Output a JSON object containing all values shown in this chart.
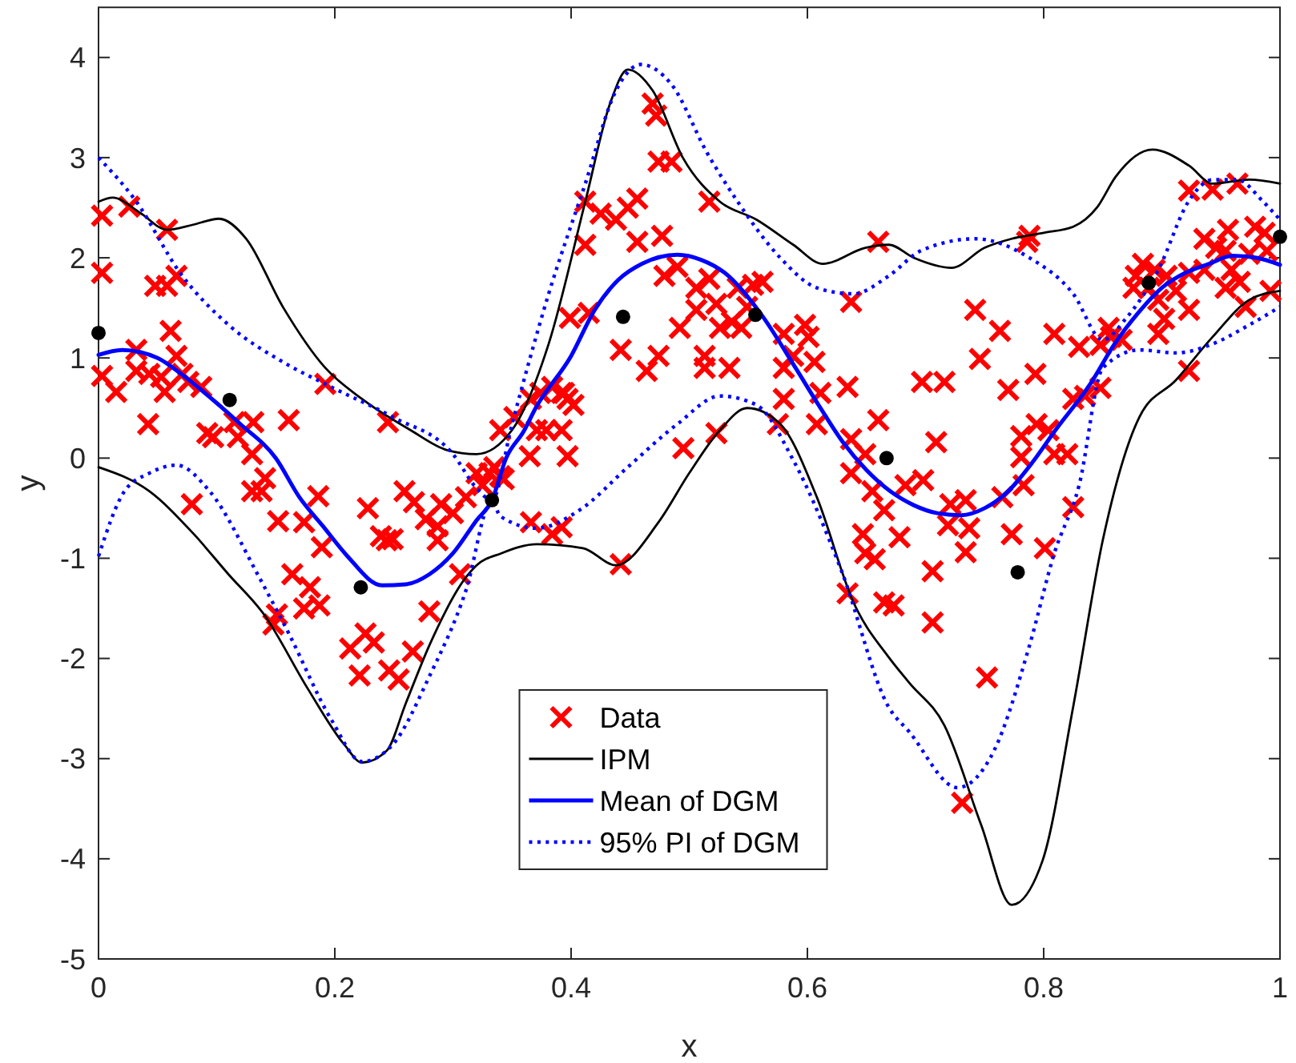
{
  "chart_data": {
    "type": "scatter",
    "xlabel": "x",
    "ylabel": "y",
    "xlim": [
      0,
      1
    ],
    "ylim": [
      -5,
      4.5
    ],
    "xticks": [
      0,
      0.2,
      0.4,
      0.6,
      0.8,
      1
    ],
    "yticks": [
      -5,
      -4,
      -3,
      -2,
      -1,
      0,
      1,
      2,
      3,
      4
    ],
    "grid": false,
    "legend": "bottom",
    "series": [
      {
        "name": "Data",
        "marker": "cross",
        "color": "#ff0000",
        "x": [
          0.003,
          0.026,
          0.058,
          0.003,
          0.048,
          0.058,
          0.066,
          0.061,
          0.032,
          0.066,
          0.003,
          0.015,
          0.032,
          0.043,
          0.053,
          0.056,
          0.071,
          0.076,
          0.087,
          0.042,
          0.092,
          0.097,
          0.115,
          0.118,
          0.131,
          0.161,
          0.13,
          0.141,
          0.13,
          0.138,
          0.152,
          0.174,
          0.186,
          0.189,
          0.079,
          0.164,
          0.179,
          0.187,
          0.174,
          0.151,
          0.148,
          0.192,
          0.245,
          0.228,
          0.259,
          0.267,
          0.29,
          0.3,
          0.311,
          0.277,
          0.287,
          0.287,
          0.239,
          0.249,
          0.244,
          0.306,
          0.28,
          0.213,
          0.226,
          0.233,
          0.221,
          0.246,
          0.254,
          0.266,
          0.331,
          0.32,
          0.335,
          0.34,
          0.343,
          0.325,
          0.34,
          0.352,
          0.366,
          0.374,
          0.384,
          0.394,
          0.397,
          0.402,
          0.371,
          0.379,
          0.392,
          0.365,
          0.397,
          0.392,
          0.366,
          0.384,
          0.392,
          0.442,
          0.495,
          0.523,
          0.412,
          0.425,
          0.438,
          0.448,
          0.456,
          0.412,
          0.456,
          0.477,
          0.469,
          0.472,
          0.474,
          0.485,
          0.517,
          0.399,
          0.415,
          0.442,
          0.464,
          0.474,
          0.479,
          0.49,
          0.492,
          0.506,
          0.506,
          0.513,
          0.513,
          0.517,
          0.523,
          0.526,
          0.534,
          0.536,
          0.541,
          0.544,
          0.549,
          0.554,
          0.562,
          0.58,
          0.58,
          0.58,
          0.575,
          0.588,
          0.598,
          0.601,
          0.606,
          0.611,
          0.608,
          0.634,
          0.637,
          0.66,
          0.66,
          0.637,
          0.649,
          0.637,
          0.655,
          0.647,
          0.649,
          0.657,
          0.634,
          0.665,
          0.709,
          0.683,
          0.698,
          0.665,
          0.678,
          0.706,
          0.673,
          0.706,
          0.752,
          0.731,
          0.742,
          0.763,
          0.746,
          0.697,
          0.716,
          0.77,
          0.793,
          0.809,
          0.83,
          0.848,
          0.857,
          0.866,
          0.825,
          0.835,
          0.848,
          0.781,
          0.794,
          0.804,
          0.809,
          0.82,
          0.781,
          0.783,
          0.765,
          0.721,
          0.734,
          0.719,
          0.737,
          0.734,
          0.773,
          0.801,
          0.825,
          0.788,
          0.786,
          0.923,
          0.943,
          0.964,
          0.884,
          0.894,
          0.904,
          0.889,
          0.897,
          0.897,
          0.902,
          0.912,
          0.923,
          0.923,
          0.936,
          0.936,
          0.946,
          0.956,
          0.954,
          0.959,
          0.954,
          0.966,
          0.974,
          0.979,
          0.987,
          0.989,
          0.992,
          0.971,
          0.923,
          0.876,
          0.878,
          0.855
        ],
        "values": [
          2.42,
          2.51,
          2.28,
          1.85,
          1.72,
          1.72,
          1.82,
          1.27,
          1.08,
          1.02,
          0.82,
          0.66,
          0.87,
          0.84,
          0.81,
          0.66,
          0.84,
          0.76,
          0.71,
          0.34,
          0.25,
          0.21,
          0.36,
          0.21,
          0.36,
          0.38,
          0.04,
          -0.2,
          -0.33,
          -0.33,
          -0.63,
          -0.64,
          -0.38,
          -0.89,
          -0.46,
          -1.16,
          -1.29,
          -1.47,
          -1.5,
          -1.56,
          -1.66,
          0.74,
          0.36,
          -0.5,
          -0.33,
          -0.44,
          -0.46,
          -0.55,
          -0.39,
          -0.61,
          -0.68,
          -0.82,
          -0.78,
          -0.81,
          -0.82,
          -1.16,
          -1.53,
          -1.9,
          -1.75,
          -1.84,
          -2.17,
          -2.12,
          -2.21,
          -1.93,
          -0.15,
          -0.15,
          -0.09,
          -0.18,
          -0.21,
          -0.27,
          0.28,
          0.41,
          0.59,
          0.65,
          0.71,
          0.65,
          0.59,
          0.53,
          0.28,
          0.28,
          0.28,
          0.02,
          0.02,
          0.65,
          -0.64,
          -0.76,
          -0.69,
          -1.06,
          0.1,
          0.25,
          2.56,
          2.44,
          2.38,
          2.5,
          2.59,
          2.13,
          2.16,
          2.22,
          3.54,
          3.42,
          2.96,
          2.96,
          2.56,
          1.4,
          1.45,
          1.08,
          0.87,
          1.02,
          1.82,
          1.91,
          1.3,
          1.48,
          1.7,
          1.02,
          0.9,
          1.79,
          1.54,
          1.3,
          0.9,
          1.36,
          1.7,
          1.3,
          1.51,
          1.73,
          1.76,
          1.24,
          0.9,
          0.59,
          0.34,
          1.02,
          1.33,
          1.21,
          0.96,
          0.65,
          0.34,
          0.71,
          1.56,
          2.16,
          0.38,
          0.19,
          0.04,
          -0.15,
          -0.33,
          -0.76,
          -0.95,
          -1.01,
          -1.35,
          -1.44,
          0.16,
          -0.27,
          -0.22,
          -0.52,
          -0.79,
          -1.13,
          -1.47,
          -1.64,
          -2.19,
          -3.44,
          1.48,
          1.27,
          0.99,
          0.76,
          0.76,
          0.68,
          0.84,
          1.24,
          1.11,
          1.13,
          1.21,
          1.18,
          0.59,
          0.62,
          0.7,
          0.22,
          0.34,
          0.28,
          0.04,
          0.04,
          0.01,
          -0.27,
          -0.39,
          -0.46,
          -0.42,
          -0.67,
          -0.7,
          -0.94,
          -0.76,
          -0.9,
          -0.49,
          2.22,
          2.16,
          2.67,
          2.68,
          2.74,
          1.94,
          1.88,
          1.82,
          1.7,
          1.58,
          1.24,
          1.39,
          1.67,
          1.48,
          1.85,
          2.19,
          1.88,
          2.1,
          2.28,
          2.07,
          1.88,
          1.7,
          1.76,
          2.04,
          2.31,
          2.25,
          2.07,
          1.67,
          1.51,
          0.87,
          1.7,
          1.82,
          1.3
        ]
      },
      {
        "name": "IPM",
        "type": "line",
        "color": "#000000",
        "line_style": "solid",
        "x": [
          0,
          0.012,
          0.035,
          0.058,
          0.08,
          0.102,
          0.125,
          0.156,
          0.192,
          0.223,
          0.264,
          0.295,
          0.32,
          0.35,
          0.381,
          0.412,
          0.433,
          0.448,
          0.469,
          0.495,
          0.526,
          0.557,
          0.588,
          0.613,
          0.649,
          0.669,
          0.69,
          0.722,
          0.75,
          0.773,
          0.8,
          0.825,
          0.845,
          0.861,
          0.892,
          0.923,
          0.943,
          0.974,
          1
        ],
        "values": [
          2.56,
          2.6,
          2.45,
          2.28,
          2.33,
          2.39,
          2.19,
          1.51,
          0.9,
          0.59,
          0.28,
          0.08,
          0.04,
          0.28,
          1.14,
          2.56,
          3.54,
          3.88,
          3.67,
          2.99,
          2.56,
          2.38,
          2.13,
          1.94,
          2.1,
          2.13,
          2.0,
          1.9,
          2.1,
          2.19,
          2.25,
          2.31,
          2.5,
          2.81,
          3.08,
          2.92,
          2.74,
          2.78,
          2.74
        ]
      },
      {
        "type": "line",
        "color": "#000000",
        "line_style": "solid",
        "x": [
          0,
          0.043,
          0.08,
          0.11,
          0.14,
          0.177,
          0.208,
          0.223,
          0.244,
          0.26,
          0.28,
          0.311,
          0.32,
          0.341,
          0.371,
          0.41,
          0.438,
          0.474,
          0.5,
          0.526,
          0.549,
          0.577,
          0.608,
          0.639,
          0.669,
          0.686,
          0.716,
          0.747,
          0.773,
          0.799,
          0.825,
          0.85,
          0.881,
          0.912,
          0.943,
          0.974,
          1
        ],
        "values": [
          -0.09,
          -0.33,
          -0.75,
          -1.16,
          -1.56,
          -2.3,
          -2.86,
          -3.04,
          -2.92,
          -2.45,
          -1.87,
          -1.19,
          -1.07,
          -0.95,
          -0.86,
          -0.9,
          -1.07,
          -0.64,
          -0.15,
          0.28,
          0.5,
          0.34,
          -0.39,
          -1.44,
          -1.99,
          -2.24,
          -2.67,
          -3.66,
          -4.46,
          -4.02,
          -2.48,
          -0.82,
          0.41,
          0.78,
          1.21,
          1.58,
          1.67
        ]
      },
      {
        "name": "Mean of DGM",
        "type": "line",
        "color": "#0000ff",
        "line_style": "solid",
        "x": [
          0,
          0.02,
          0.05,
          0.07,
          0.1,
          0.12,
          0.15,
          0.17,
          0.19,
          0.21,
          0.24,
          0.26,
          0.28,
          0.3,
          0.32,
          0.333,
          0.345,
          0.36,
          0.37,
          0.4,
          0.42,
          0.44,
          0.46,
          0.49,
          0.51,
          0.53,
          0.56,
          0.59,
          0.61,
          0.63,
          0.65,
          0.67,
          0.69,
          0.71,
          0.73,
          0.75,
          0.77,
          0.79,
          0.81,
          0.84,
          0.86,
          0.88,
          0.9,
          0.92,
          0.94,
          0.96,
          0.98,
          1
        ],
        "values": [
          1.03,
          1.08,
          1.0,
          0.84,
          0.55,
          0.34,
          0.0,
          -0.39,
          -0.68,
          -0.97,
          -1.27,
          -1.26,
          -1.16,
          -0.95,
          -0.62,
          -0.42,
          0.0,
          0.27,
          0.5,
          1.02,
          1.48,
          1.78,
          1.94,
          2.03,
          1.98,
          1.85,
          1.45,
          0.9,
          0.52,
          0.16,
          -0.12,
          -0.33,
          -0.47,
          -0.55,
          -0.57,
          -0.5,
          -0.33,
          -0.05,
          0.28,
          0.75,
          1.14,
          1.45,
          1.7,
          1.85,
          1.94,
          2.02,
          2.0,
          1.93
        ]
      },
      {
        "name": "95% PI of DGM",
        "type": "line",
        "color": "#0000ff",
        "line_style": "dotted",
        "x": [
          0,
          0.032,
          0.069,
          0.11,
          0.156,
          0.197,
          0.249,
          0.3,
          0.32,
          0.333,
          0.35,
          0.381,
          0.412,
          0.438,
          0.459,
          0.485,
          0.515,
          0.541,
          0.577,
          0.608,
          0.639,
          0.669,
          0.696,
          0.742,
          0.788,
          0.825,
          0.85,
          0.87,
          0.897,
          0.923,
          0.943,
          0.964,
          0.985,
          1
        ],
        "values": [
          3.0,
          2.56,
          1.85,
          1.33,
          0.96,
          0.71,
          0.41,
          0.04,
          -0.3,
          -0.42,
          0.34,
          1.64,
          2.74,
          3.67,
          3.93,
          3.73,
          3.05,
          2.56,
          2.0,
          1.7,
          1.64,
          1.82,
          2.07,
          2.19,
          2.0,
          1.64,
          1.18,
          1.4,
          1.88,
          2.57,
          2.78,
          2.78,
          2.57,
          2.38
        ]
      },
      {
        "type": "line",
        "color": "#0000ff",
        "line_style": "dotted",
        "x": [
          0,
          0.022,
          0.043,
          0.066,
          0.094,
          0.136,
          0.161,
          0.197,
          0.223,
          0.249,
          0.28,
          0.311,
          0.333,
          0.34,
          0.371,
          0.407,
          0.448,
          0.49,
          0.526,
          0.557,
          0.588,
          0.629,
          0.669,
          0.686,
          0.727,
          0.758,
          0.788,
          0.809,
          0.83,
          0.85,
          0.881,
          0.912,
          0.943,
          0.974,
          1
        ],
        "values": [
          -0.98,
          -0.33,
          -0.15,
          -0.07,
          -0.33,
          -1.19,
          -1.75,
          -2.61,
          -3.03,
          -2.86,
          -2.18,
          -1.32,
          -0.42,
          -0.58,
          -0.7,
          -0.52,
          -0.09,
          0.34,
          0.62,
          0.53,
          -0.02,
          -1.13,
          -2.49,
          -2.73,
          -3.29,
          -2.92,
          -1.87,
          -0.95,
          -0.27,
          0.9,
          1.08,
          1.05,
          1.14,
          1.33,
          1.51
        ]
      },
      {
        "marker": "circle",
        "color": "#000000",
        "x": [
          0,
          0.111,
          0.222,
          0.333,
          0.444,
          0.556,
          0.667,
          0.778,
          0.889,
          1
        ],
        "values": [
          1.25,
          0.58,
          -1.29,
          -0.42,
          1.41,
          1.43,
          0.0,
          -1.14,
          1.75,
          2.21
        ]
      }
    ]
  }
}
